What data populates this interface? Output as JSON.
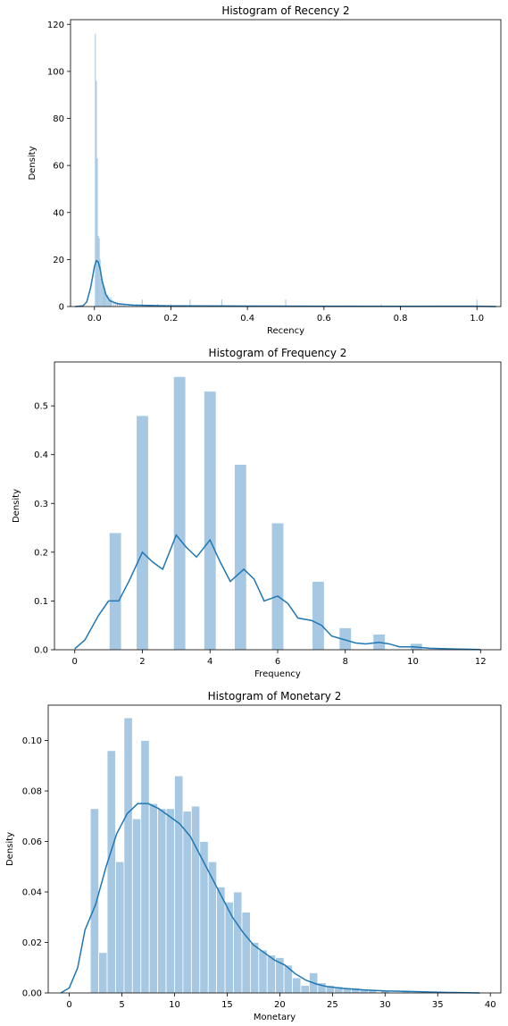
{
  "chart_data": [
    {
      "type": "bar",
      "title": "Histogram of Recency 2",
      "xlabel": "Recency",
      "ylabel": "Density",
      "xlim": [
        -0.0625,
        1.0625
      ],
      "ylim": [
        0,
        122
      ],
      "xticks": [
        0.0,
        0.2,
        0.4,
        0.6,
        0.8,
        1.0
      ],
      "xtick_labels": [
        "0.0",
        "0.2",
        "0.4",
        "0.6",
        "0.8",
        "1.0"
      ],
      "yticks": [
        0,
        20,
        40,
        60,
        80,
        100,
        120
      ],
      "ytick_labels": [
        "0",
        "20",
        "40",
        "60",
        "80",
        "100",
        "120"
      ],
      "bar_color": "#a6c8e2",
      "line_color": "#1f77b4",
      "bin_width": 0.0025,
      "bins": [
        [
          0.0025,
          116
        ],
        [
          0.005,
          96
        ],
        [
          0.0075,
          63
        ],
        [
          0.01,
          30
        ],
        [
          0.0125,
          29
        ],
        [
          0.015,
          20
        ],
        [
          0.0175,
          12
        ],
        [
          0.02,
          11
        ],
        [
          0.0225,
          9
        ],
        [
          0.025,
          7
        ],
        [
          0.0275,
          8
        ],
        [
          0.03,
          6
        ],
        [
          0.0325,
          5
        ],
        [
          0.035,
          5
        ],
        [
          0.0375,
          4
        ],
        [
          0.04,
          3
        ],
        [
          0.0425,
          4
        ],
        [
          0.045,
          3
        ],
        [
          0.05,
          2
        ],
        [
          0.055,
          2
        ],
        [
          0.06,
          2
        ],
        [
          0.065,
          1.5
        ],
        [
          0.07,
          1.5
        ],
        [
          0.075,
          1
        ],
        [
          0.08,
          1
        ],
        [
          0.09,
          1
        ],
        [
          0.1,
          1
        ],
        [
          0.11,
          1
        ],
        [
          0.125,
          3
        ],
        [
          0.165,
          1
        ],
        [
          0.2,
          1
        ],
        [
          0.25,
          3
        ],
        [
          0.333,
          3
        ],
        [
          0.5,
          3
        ],
        [
          0.75,
          1
        ],
        [
          1.0,
          3
        ]
      ],
      "kde": [
        [
          -0.05,
          0
        ],
        [
          -0.03,
          0.3
        ],
        [
          -0.02,
          2
        ],
        [
          -0.01,
          8
        ],
        [
          0.0,
          17
        ],
        [
          0.005,
          19.5
        ],
        [
          0.01,
          19
        ],
        [
          0.015,
          16
        ],
        [
          0.02,
          11
        ],
        [
          0.03,
          5
        ],
        [
          0.04,
          2.5
        ],
        [
          0.06,
          1.2
        ],
        [
          0.1,
          0.6
        ],
        [
          0.2,
          0.3
        ],
        [
          0.4,
          0.2
        ],
        [
          0.6,
          0.15
        ],
        [
          0.8,
          0.1
        ],
        [
          1.0,
          0.15
        ],
        [
          1.05,
          0
        ]
      ]
    },
    {
      "type": "bar",
      "title": "Histogram of Frequency 2",
      "xlabel": "Frequency",
      "ylabel": "Density",
      "xlim": [
        -0.6,
        12.6
      ],
      "ylim": [
        0,
        0.59
      ],
      "xticks": [
        0,
        2,
        4,
        6,
        8,
        10,
        12
      ],
      "xtick_labels": [
        "0",
        "2",
        "4",
        "6",
        "8",
        "10",
        "12"
      ],
      "yticks": [
        0.0,
        0.1,
        0.2,
        0.3,
        0.4,
        0.5
      ],
      "ytick_labels": [
        "0.0",
        "0.1",
        "0.2",
        "0.3",
        "0.4",
        "0.5"
      ],
      "bar_color": "#a6c8e2",
      "line_color": "#1f77b4",
      "bin_width": 0.36,
      "bins": [
        [
          1.2,
          0.24
        ],
        [
          2.0,
          0.48
        ],
        [
          3.1,
          0.56
        ],
        [
          4.0,
          0.53
        ],
        [
          4.9,
          0.38
        ],
        [
          6.0,
          0.26
        ],
        [
          7.2,
          0.14
        ],
        [
          8.0,
          0.045
        ],
        [
          9.0,
          0.032
        ],
        [
          10.1,
          0.013
        ]
      ],
      "kde": [
        [
          0.0,
          0.002
        ],
        [
          0.3,
          0.02
        ],
        [
          0.7,
          0.07
        ],
        [
          1.0,
          0.1
        ],
        [
          1.3,
          0.1
        ],
        [
          1.6,
          0.14
        ],
        [
          2.0,
          0.2
        ],
        [
          2.3,
          0.18
        ],
        [
          2.6,
          0.165
        ],
        [
          3.0,
          0.235
        ],
        [
          3.3,
          0.21
        ],
        [
          3.6,
          0.19
        ],
        [
          4.0,
          0.225
        ],
        [
          4.3,
          0.18
        ],
        [
          4.6,
          0.14
        ],
        [
          5.0,
          0.165
        ],
        [
          5.3,
          0.145
        ],
        [
          5.6,
          0.1
        ],
        [
          6.0,
          0.11
        ],
        [
          6.3,
          0.095
        ],
        [
          6.6,
          0.065
        ],
        [
          7.0,
          0.06
        ],
        [
          7.3,
          0.05
        ],
        [
          7.6,
          0.028
        ],
        [
          8.0,
          0.02
        ],
        [
          8.3,
          0.014
        ],
        [
          8.6,
          0.012
        ],
        [
          9.0,
          0.015
        ],
        [
          9.3,
          0.012
        ],
        [
          9.6,
          0.006
        ],
        [
          10.0,
          0.006
        ],
        [
          10.5,
          0.003
        ],
        [
          11.0,
          0.002
        ],
        [
          12.0,
          0.0005
        ]
      ]
    },
    {
      "type": "bar",
      "title": "Histogram of Monetary 2",
      "xlabel": "Monetary",
      "ylabel": "Density",
      "xlim": [
        -2.0,
        41.0
      ],
      "ylim": [
        0,
        0.114
      ],
      "xticks": [
        0,
        5,
        10,
        15,
        20,
        25,
        30,
        35,
        40
      ],
      "xtick_labels": [
        "0",
        "5",
        "10",
        "15",
        "20",
        "25",
        "30",
        "35",
        "40"
      ],
      "yticks": [
        0.0,
        0.02,
        0.04,
        0.06,
        0.08,
        0.1
      ],
      "ytick_labels": [
        "0.00",
        "0.02",
        "0.04",
        "0.06",
        "0.08",
        "0.10"
      ],
      "bar_color": "#a6c8e2",
      "line_color": "#1f77b4",
      "bin_width": 0.8,
      "bins": [
        [
          2.4,
          0.073
        ],
        [
          3.2,
          0.016
        ],
        [
          4.0,
          0.096
        ],
        [
          4.8,
          0.052
        ],
        [
          5.6,
          0.109
        ],
        [
          6.4,
          0.069
        ],
        [
          7.2,
          0.1
        ],
        [
          8.0,
          0.075
        ],
        [
          8.8,
          0.073
        ],
        [
          9.6,
          0.073
        ],
        [
          10.4,
          0.086
        ],
        [
          11.2,
          0.072
        ],
        [
          12.0,
          0.074
        ],
        [
          12.8,
          0.06
        ],
        [
          13.6,
          0.052
        ],
        [
          14.4,
          0.042
        ],
        [
          15.2,
          0.036
        ],
        [
          16.0,
          0.04
        ],
        [
          16.8,
          0.032
        ],
        [
          17.6,
          0.02
        ],
        [
          18.4,
          0.017
        ],
        [
          19.2,
          0.015
        ],
        [
          20.0,
          0.014
        ],
        [
          20.8,
          0.011
        ],
        [
          21.6,
          0.006
        ],
        [
          22.4,
          0.003
        ],
        [
          23.2,
          0.008
        ],
        [
          24.0,
          0.004
        ],
        [
          24.8,
          0.003
        ],
        [
          25.6,
          0.0025
        ],
        [
          26.4,
          0.002
        ],
        [
          27.2,
          0.002
        ],
        [
          28.0,
          0.0015
        ],
        [
          28.8,
          0.001
        ],
        [
          30.0,
          0.001
        ],
        [
          32.0,
          0.0008
        ],
        [
          34.0,
          0.0005
        ],
        [
          36.0,
          0.0004
        ]
      ],
      "kde": [
        [
          -0.8,
          0.0
        ],
        [
          0.0,
          0.002
        ],
        [
          0.8,
          0.01
        ],
        [
          1.5,
          0.025
        ],
        [
          2.5,
          0.035
        ],
        [
          3.5,
          0.05
        ],
        [
          4.5,
          0.063
        ],
        [
          5.5,
          0.071
        ],
        [
          6.5,
          0.075
        ],
        [
          7.5,
          0.075
        ],
        [
          8.5,
          0.073
        ],
        [
          9.5,
          0.07
        ],
        [
          10.5,
          0.067
        ],
        [
          11.5,
          0.062
        ],
        [
          12.5,
          0.054
        ],
        [
          13.5,
          0.046
        ],
        [
          14.5,
          0.038
        ],
        [
          15.5,
          0.03
        ],
        [
          16.5,
          0.024
        ],
        [
          17.5,
          0.019
        ],
        [
          18.5,
          0.016
        ],
        [
          19.5,
          0.013
        ],
        [
          20.5,
          0.011
        ],
        [
          21.5,
          0.0075
        ],
        [
          22.5,
          0.005
        ],
        [
          23.5,
          0.0035
        ],
        [
          24.5,
          0.0025
        ],
        [
          26,
          0.0018
        ],
        [
          28,
          0.0012
        ],
        [
          30,
          0.0008
        ],
        [
          32,
          0.0006
        ],
        [
          34,
          0.0004
        ],
        [
          36,
          0.0002
        ],
        [
          39,
          0.0
        ]
      ]
    }
  ]
}
